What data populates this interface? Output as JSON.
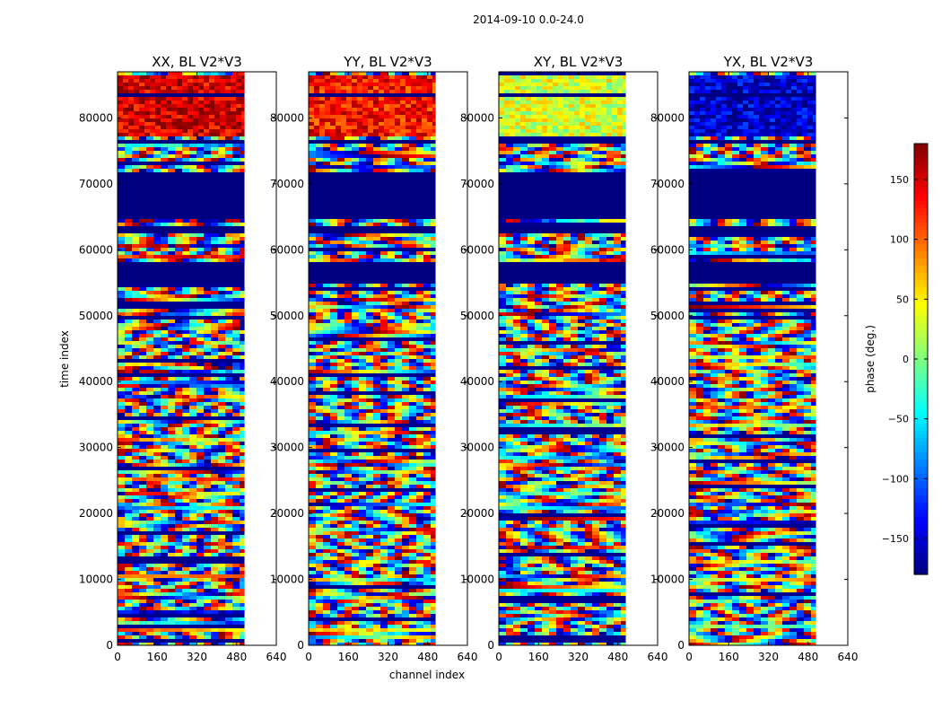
{
  "chart_data": {
    "type": "heatmap",
    "suptitle": "2014-09-10 0.0-24.0",
    "xlabel": "channel index",
    "ylabel": "time index",
    "xlim": [
      0,
      640
    ],
    "ylim": [
      0,
      87000
    ],
    "xticks": [
      "0",
      "160",
      "320",
      "480",
      "640"
    ],
    "yticks": [
      "0",
      "10000",
      "20000",
      "30000",
      "40000",
      "50000",
      "60000",
      "70000",
      "80000"
    ],
    "data_channel_extent": [
      0,
      512
    ],
    "panels": [
      {
        "title": "XX, BL V2*V3",
        "band_phase_deg": 150
      },
      {
        "title": "YY, BL V2*V3",
        "band_phase_deg": 130
      },
      {
        "title": "XY, BL V2*V3",
        "band_phase_deg": 30
      },
      {
        "title": "YX, BL V2*V3",
        "band_phase_deg": -150
      }
    ],
    "flagged_time_ranges": [
      [
        55000,
        58500
      ],
      [
        65000,
        72000
      ],
      [
        83500,
        84000
      ],
      [
        76500,
        77000
      ],
      [
        63000,
        64000
      ]
    ],
    "colorbar": {
      "label": "phase (deg.)",
      "range": [
        -180,
        180
      ],
      "ticks": [
        "150",
        "100",
        "50",
        "0",
        "−50",
        "−100",
        "−150"
      ],
      "tick_values": [
        150,
        100,
        50,
        0,
        -50,
        -100,
        -150
      ],
      "colormap": "jet"
    }
  }
}
